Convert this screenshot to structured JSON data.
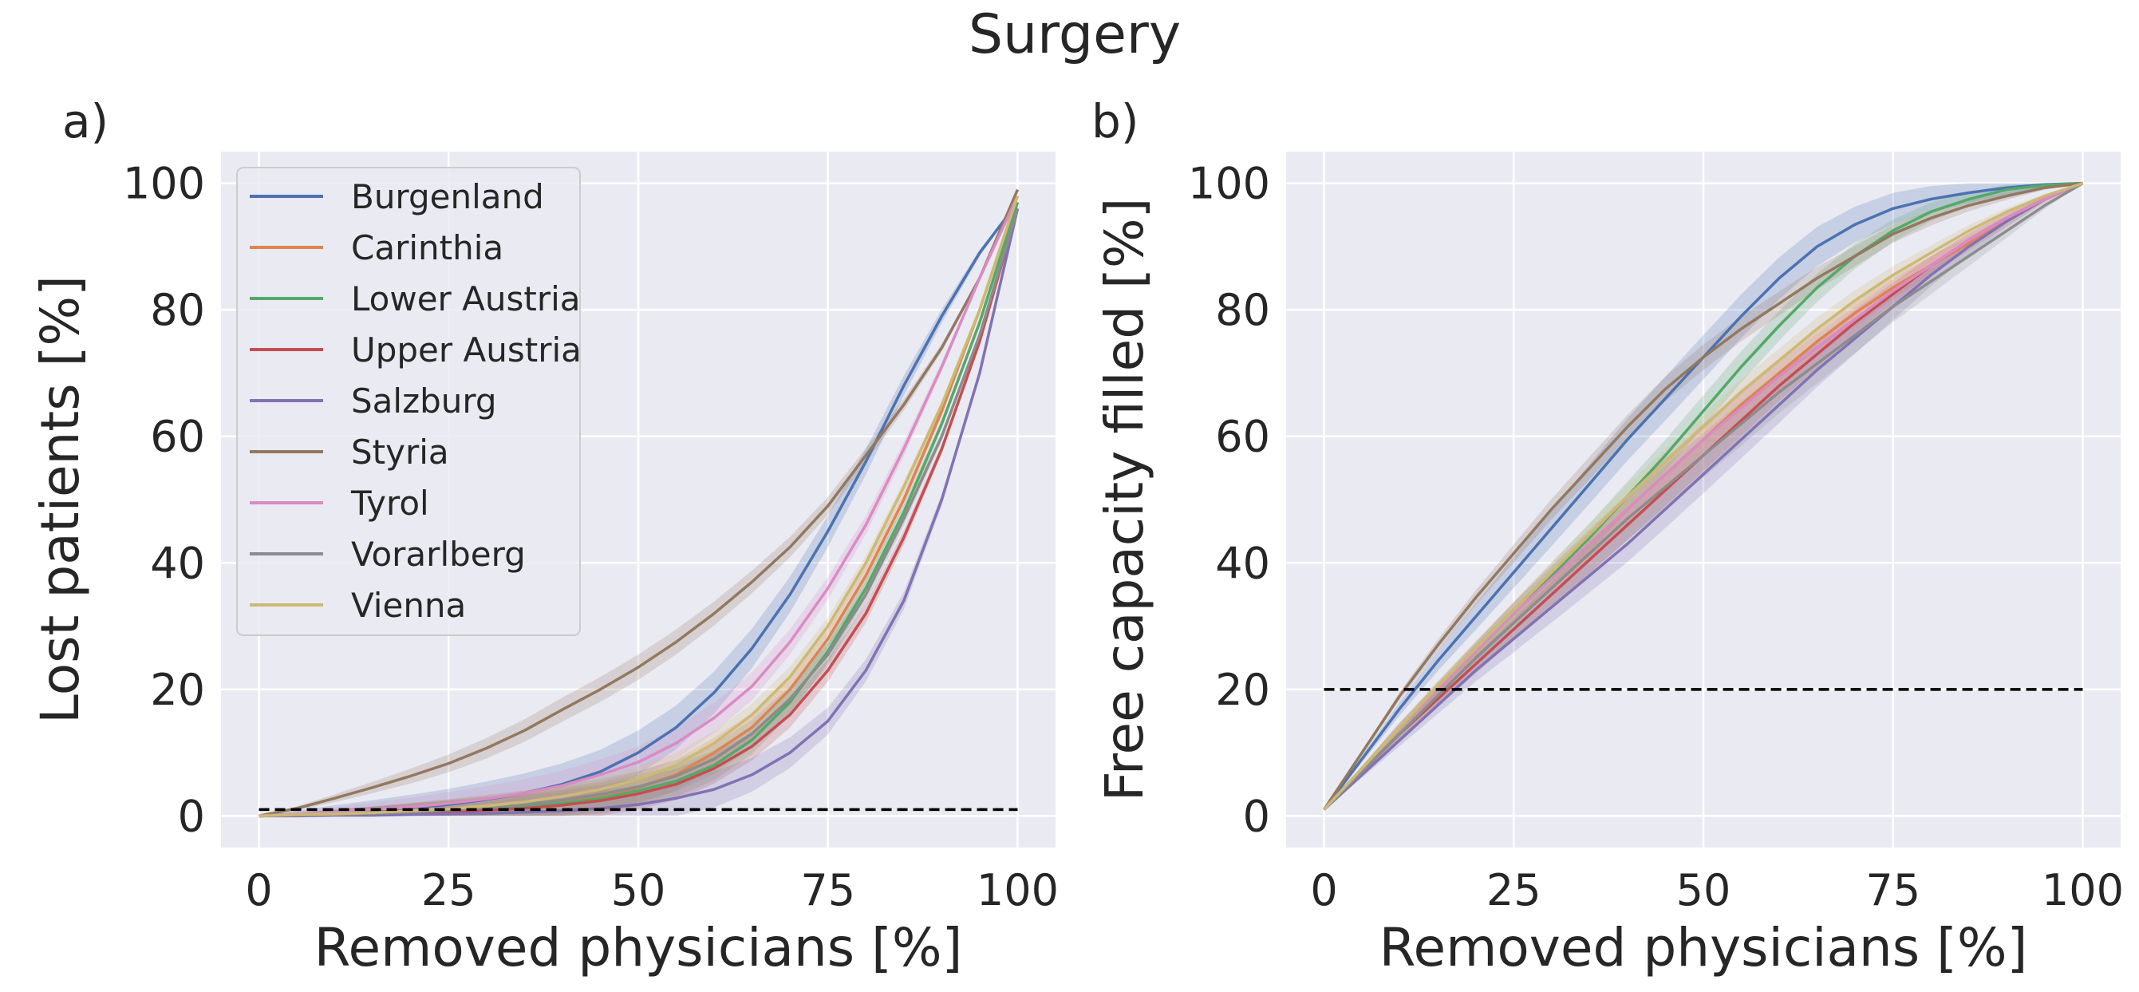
{
  "figure_title": "Surgery",
  "colors": {
    "background": "#eaeaf2",
    "grid": "#ffffff",
    "text": "#262626",
    "reference_line": "#000000"
  },
  "chart_data": [
    {
      "type": "line",
      "panel_label": "a)",
      "title": "Surgery",
      "xlabel": "Removed physicians [%]",
      "ylabel": "Lost patients [%]",
      "xlim": [
        -5,
        105
      ],
      "ylim": [
        -5,
        105
      ],
      "xticks": [
        0,
        25,
        50,
        75,
        100
      ],
      "yticks": [
        0,
        20,
        40,
        60,
        80,
        100
      ],
      "grid": true,
      "legend_position": "top-left",
      "reference_line": {
        "y": 1,
        "x_range": [
          0,
          100
        ],
        "style": "dashed"
      },
      "x": [
        0,
        5,
        10,
        15,
        20,
        25,
        30,
        35,
        40,
        45,
        50,
        55,
        60,
        65,
        70,
        75,
        80,
        85,
        90,
        95,
        100
      ],
      "series": [
        {
          "name": "Burgenland",
          "color": "#4c72b0",
          "band": 3.5,
          "values": [
            0,
            0.3,
            0.6,
            0.9,
            1.3,
            1.8,
            2.6,
            3.6,
            5,
            7,
            10,
            14,
            19.5,
            26.5,
            35,
            45,
            56,
            68,
            79,
            89,
            97
          ]
        },
        {
          "name": "Carinthia",
          "color": "#dd8452",
          "band": 2.5,
          "values": [
            0,
            0.1,
            0.2,
            0.3,
            0.5,
            0.8,
            1.1,
            1.6,
            2.2,
            3,
            4.5,
            6.5,
            10,
            14,
            20,
            28,
            38,
            50,
            64,
            80,
            98
          ]
        },
        {
          "name": "Lower Austria",
          "color": "#55a868",
          "band": 2.5,
          "values": [
            0,
            0.1,
            0.2,
            0.3,
            0.5,
            0.7,
            1,
            1.5,
            2,
            2.8,
            4,
            5.5,
            8,
            12,
            18,
            26,
            36,
            48,
            62,
            78,
            97
          ]
        },
        {
          "name": "Upper Austria",
          "color": "#c44e52",
          "band": 2.5,
          "values": [
            0,
            0.1,
            0.2,
            0.3,
            0.4,
            0.6,
            0.9,
            1.2,
            1.7,
            2.4,
            3.5,
            5,
            7.5,
            11,
            16,
            23,
            32,
            44,
            58,
            75,
            96
          ]
        },
        {
          "name": "Salzburg",
          "color": "#8172b3",
          "band": 3,
          "values": [
            0,
            0,
            0.1,
            0.1,
            0.2,
            0.3,
            0.4,
            0.6,
            0.8,
            1.2,
            1.8,
            2.8,
            4.2,
            6.5,
            10,
            15,
            23,
            34,
            50,
            70,
            96
          ]
        },
        {
          "name": "Styria",
          "color": "#937860",
          "band": 2,
          "values": [
            0,
            1.2,
            2.8,
            4.5,
            6.3,
            8.3,
            10.7,
            13.5,
            16.8,
            20,
            23.5,
            27.5,
            32,
            37,
            42.5,
            49,
            57,
            65,
            74,
            85,
            99
          ]
        },
        {
          "name": "Tyrol",
          "color": "#da8bc3",
          "band": 2.5,
          "values": [
            0,
            0.3,
            0.6,
            1,
            1.4,
            2,
            2.7,
            3.6,
            4.8,
            6.5,
            8.5,
            11.5,
            15.5,
            20.5,
            27.5,
            36,
            46,
            58,
            71,
            85,
            98
          ]
        },
        {
          "name": "Vorarlberg",
          "color": "#8c8c8c",
          "band": 2.5,
          "values": [
            0,
            0.1,
            0.2,
            0.4,
            0.6,
            0.9,
            1.3,
            1.8,
            2.5,
            3.4,
            4.6,
            6.3,
            9,
            13,
            18.5,
            25.5,
            35,
            47,
            60,
            76,
            96
          ]
        },
        {
          "name": "Vienna",
          "color": "#ccb974",
          "band": 2,
          "values": [
            0,
            0.2,
            0.3,
            0.5,
            0.8,
            1.1,
            1.6,
            2.2,
            3.1,
            4.2,
            5.8,
            8,
            11.5,
            16,
            22,
            30,
            40,
            52,
            65,
            80,
            98
          ]
        }
      ]
    },
    {
      "type": "line",
      "panel_label": "b)",
      "xlabel": "Removed physicians [%]",
      "ylabel": "Free capacity filled [%]",
      "xlim": [
        -5,
        105
      ],
      "ylim": [
        -5,
        105
      ],
      "xticks": [
        0,
        25,
        50,
        75,
        100
      ],
      "yticks": [
        0,
        20,
        40,
        60,
        80,
        100
      ],
      "grid": true,
      "reference_line": {
        "y": 20,
        "x_range": [
          0,
          100
        ],
        "style": "dashed"
      },
      "x": [
        0,
        5,
        10,
        15,
        20,
        25,
        30,
        35,
        40,
        45,
        50,
        55,
        60,
        65,
        70,
        75,
        80,
        85,
        90,
        95,
        100
      ],
      "series": [
        {
          "name": "Burgenland",
          "color": "#4c72b0",
          "band": 3.5,
          "values": [
            1,
            9,
            17,
            24.5,
            31.5,
            38.5,
            45.5,
            52.5,
            59.5,
            66,
            72.5,
            79,
            85,
            90,
            93.5,
            96,
            97.5,
            98.5,
            99.3,
            99.8,
            100
          ]
        },
        {
          "name": "Carinthia",
          "color": "#dd8452",
          "band": 2.5,
          "values": [
            1,
            7.5,
            14,
            20,
            26,
            32,
            37.5,
            43,
            48.5,
            54,
            59.5,
            65,
            70,
            75,
            79.5,
            83.5,
            87,
            90.5,
            94,
            97.5,
            100
          ]
        },
        {
          "name": "Lower Austria",
          "color": "#55a868",
          "band": 2.5,
          "values": [
            1,
            7.5,
            14,
            20,
            26,
            32,
            38,
            44,
            50.5,
            57,
            64,
            71,
            77.5,
            83.5,
            88.5,
            92.5,
            95.5,
            97.5,
            99,
            99.7,
            100
          ]
        },
        {
          "name": "Upper Austria",
          "color": "#c44e52",
          "band": 2.5,
          "values": [
            1,
            7,
            13,
            18.5,
            24,
            29.5,
            35,
            40.5,
            46,
            51.5,
            57,
            62.5,
            68,
            73,
            78,
            82.5,
            87,
            91,
            94.5,
            97.5,
            100
          ]
        },
        {
          "name": "Salzburg",
          "color": "#8172b3",
          "band": 3,
          "values": [
            1,
            6.5,
            12,
            17.5,
            23,
            28,
            33,
            38,
            43,
            48.5,
            54,
            59.5,
            65,
            70.5,
            75.5,
            80.5,
            85.5,
            90,
            94,
            97.5,
            100
          ]
        },
        {
          "name": "Styria",
          "color": "#937860",
          "band": 2,
          "values": [
            1,
            10,
            19,
            27,
            34.5,
            41.5,
            48.5,
            55,
            61.5,
            67.5,
            72.5,
            77,
            81,
            85,
            88.5,
            92,
            94.5,
            96.5,
            98,
            99.3,
            100
          ]
        },
        {
          "name": "Tyrol",
          "color": "#da8bc3",
          "band": 2.5,
          "values": [
            1,
            7.5,
            14,
            20,
            26,
            32,
            37.5,
            43,
            48.5,
            54,
            59.5,
            64.5,
            69.5,
            74,
            78.5,
            83,
            87,
            91,
            94.5,
            97.5,
            100
          ]
        },
        {
          "name": "Vorarlberg",
          "color": "#8c8c8c",
          "band": 3.5,
          "values": [
            1,
            7,
            13,
            19,
            25,
            30.5,
            36,
            41.5,
            47,
            52,
            57,
            62,
            67,
            71.5,
            76,
            80.5,
            84.5,
            88.5,
            92.5,
            96.5,
            100
          ]
        },
        {
          "name": "Vienna",
          "color": "#ccb974",
          "band": 2,
          "values": [
            1,
            7.5,
            14,
            20.5,
            26.5,
            32.5,
            38.5,
            44.5,
            50.5,
            56,
            61.5,
            67,
            72,
            77,
            81.5,
            85.5,
            89,
            92.5,
            95.5,
            98,
            100
          ]
        }
      ]
    }
  ]
}
